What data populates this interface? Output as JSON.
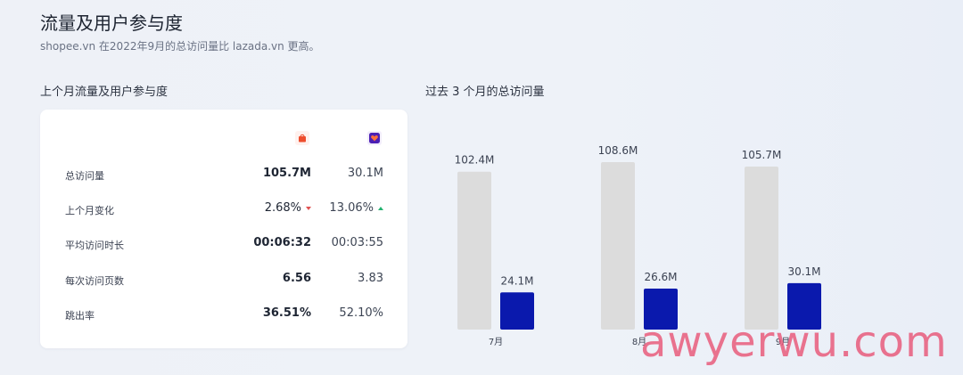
{
  "header": {
    "title": "流量及用户参与度",
    "subtitle": "shopee.vn 在2022年9月的总访问量比 lazada.vn 更高。"
  },
  "table": {
    "section_title": "上个月流量及用户参与度",
    "brands": [
      {
        "icon": "shopee-logo-icon",
        "color": "#ee4d2d"
      },
      {
        "icon": "lazada-logo-icon",
        "color": "#4b1fb4"
      }
    ],
    "rows": [
      {
        "label": "总访问量",
        "shopee": "105.7M",
        "lazada": "30.1M"
      },
      {
        "label": "上个月变化",
        "shopee": "2.68%",
        "lazada": "13.06%",
        "shopee_trend": "down",
        "lazada_trend": "up"
      },
      {
        "label": "平均访问时长",
        "shopee": "00:06:32",
        "lazada": "00:03:55"
      },
      {
        "label": "每次访问页数",
        "shopee": "6.56",
        "lazada": "3.83"
      },
      {
        "label": "跳出率",
        "shopee": "36.51%",
        "lazada": "52.10%"
      }
    ],
    "colors": {
      "down": "#e05252",
      "up": "#21b26f"
    }
  },
  "chart_title": "过去 3 个月的总访问量",
  "chart_data": {
    "type": "bar",
    "categories": [
      "7月",
      "8月",
      "9月"
    ],
    "series": [
      {
        "values": [
          102.4,
          108.6,
          105.7
        ],
        "labels": [
          "102.4M",
          "108.6M",
          "105.7M"
        ],
        "color": "#dcdcdc"
      },
      {
        "values": [
          24.1,
          26.6,
          30.1
        ],
        "labels": [
          "24.1M",
          "26.6M",
          "30.1M"
        ],
        "color": "#0a19ad"
      }
    ],
    "ylim": [
      0,
      108.6
    ],
    "grid": false,
    "legend": "none"
  },
  "watermark": "awyerwu.com"
}
